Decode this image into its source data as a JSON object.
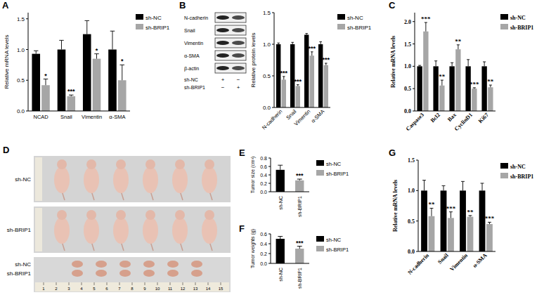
{
  "chart_data": [
    {
      "type": "bar",
      "panel": "A",
      "y_label": "Relative mRNA levels",
      "categories": [
        "NCAD",
        "Snail",
        "Vimentin",
        "α-SMA"
      ],
      "series": [
        {
          "name": "sh-NC",
          "color": "#000000",
          "values": [
            0.93,
            1.0,
            1.25,
            1.0
          ],
          "errors": [
            0.05,
            0.15,
            0.22,
            0.3
          ]
        },
        {
          "name": "sh-BRIP1",
          "color": "#a6a6a6",
          "values": [
            0.42,
            0.24,
            0.85,
            0.5
          ],
          "errors": [
            0.1,
            0.02,
            0.08,
            0.25
          ],
          "significance": [
            "*",
            "***",
            "*",
            "*"
          ]
        }
      ],
      "ylim": [
        0,
        1.6
      ],
      "yticks": [
        {
          "value": 0,
          "label": "0.0"
        },
        {
          "value": 0.5,
          "label": "0.5"
        },
        {
          "value": 1,
          "label": "1.0"
        },
        {
          "value": 1.5,
          "label": "1.5"
        }
      ],
      "grid": false,
      "legend": "right"
    },
    {
      "type": "bar",
      "panel": "B",
      "y_label": "Relative protein levels",
      "categories": [
        "N-cadherin",
        "Snail",
        "Vimentin",
        "α-SMA"
      ],
      "series": [
        {
          "name": "sh-NC",
          "color": "#000000",
          "values": [
            1.0,
            1.0,
            1.15,
            1.0
          ],
          "errors": [
            0.02,
            0.03,
            0.02,
            0.04
          ]
        },
        {
          "name": "sh-BRIP1",
          "color": "#a6a6a6",
          "values": [
            0.44,
            0.34,
            0.82,
            0.67
          ],
          "errors": [
            0.05,
            0.02,
            0.06,
            0.03
          ],
          "significance": [
            "***",
            "***",
            "***",
            "***"
          ]
        }
      ],
      "ylim": [
        0,
        1.5
      ],
      "yticks": [
        {
          "value": 0,
          "label": "0.0"
        },
        {
          "value": 0.5,
          "label": "0.5"
        },
        {
          "value": 1,
          "label": "1.0"
        },
        {
          "value": 1.5,
          "label": "1.5"
        }
      ],
      "grid": false,
      "legend": "right"
    },
    {
      "type": "bar",
      "panel": "C",
      "y_label": "Relative mRNA levels",
      "categories": [
        "Caspase3",
        "Bcl2",
        "Bax",
        "CyclinD1",
        "Ki67"
      ],
      "series": [
        {
          "name": "sh-NC",
          "color": "#000000",
          "values": [
            1,
            1,
            1,
            1,
            1
          ],
          "errors": [
            0.02,
            0.12,
            0.08,
            0.15,
            0.1
          ]
        },
        {
          "name": "sh-BRIP1",
          "color": "#a6a6a6",
          "values": [
            1.78,
            0.57,
            1.38,
            0.5,
            0.53
          ],
          "errors": [
            0.2,
            0.12,
            0.1,
            0.02,
            0.05
          ],
          "significance": [
            "***",
            "**",
            "**",
            "***",
            "**"
          ]
        }
      ],
      "ylim": [
        0,
        2.2
      ],
      "yticks": [
        {
          "value": 0,
          "label": "0.0"
        },
        {
          "value": 0.5,
          "label": "0.5"
        },
        {
          "value": 1,
          "label": "1.0"
        },
        {
          "value": 1.5,
          "label": "1.5"
        },
        {
          "value": 2,
          "label": "2.0"
        }
      ],
      "grid": false,
      "legend": "right"
    },
    {
      "type": "bar",
      "panel": "E",
      "y_label": "Tumor size (cm³)",
      "categories": [
        "sh-NC",
        "sh-BRIP1"
      ],
      "values": [
        0.52,
        0.27
      ],
      "errors": [
        0.11,
        0.03
      ],
      "significance": [
        null,
        "***"
      ],
      "colors": [
        "#000000",
        "#a6a6a6"
      ],
      "ylim": [
        0,
        0.8
      ],
      "yticks": [
        {
          "value": 0,
          "label": "0.0"
        },
        0.2,
        0.4,
        0.6,
        0.8
      ],
      "grid": false,
      "legend": "right"
    },
    {
      "type": "bar",
      "panel": "F",
      "y_label": "Tumor weights (g)",
      "categories": [
        "sh-NC",
        "sh-BRIP1"
      ],
      "values": [
        0.5,
        0.3
      ],
      "errors": [
        0.05,
        0.05
      ],
      "significance": [
        null,
        "***"
      ],
      "colors": [
        "#000000",
        "#a6a6a6"
      ],
      "ylim": [
        0,
        0.6
      ],
      "yticks": [
        {
          "value": 0,
          "label": "0.0"
        },
        0.2,
        0.4,
        0.6
      ],
      "grid": false,
      "legend": "right"
    },
    {
      "type": "bar",
      "panel": "G",
      "y_label": "Relative mRNA levels",
      "categories": [
        "N-cadherin",
        "Snail",
        "Vimentin",
        "α-SMA"
      ],
      "series": [
        {
          "name": "sh-NC",
          "color": "#000000",
          "values": [
            1,
            1,
            1,
            1
          ],
          "errors": [
            0.17,
            0.08,
            0.15,
            0.12
          ]
        },
        {
          "name": "sh-BRIP1",
          "color": "#a6a6a6",
          "values": [
            0.58,
            0.55,
            0.57,
            0.45
          ],
          "errors": [
            0.13,
            0.1,
            0.02,
            0.03
          ],
          "significance": [
            "**",
            "***",
            "**",
            "***"
          ]
        }
      ],
      "ylim": [
        0,
        1.5
      ],
      "yticks": [
        {
          "value": 0,
          "label": "0.0"
        },
        {
          "value": 0.5,
          "label": "0.5"
        },
        {
          "value": 1,
          "label": "1.0"
        },
        {
          "value": 1.5,
          "label": "1.5"
        }
      ],
      "grid": false,
      "legend": "right"
    }
  ],
  "blot": {
    "proteins": [
      "N-cadherin",
      "Snail",
      "Vimentin",
      "α-SMA",
      "β-actin"
    ],
    "lanes": [
      {
        "label": "sh-NC",
        "marks": [
          "+",
          "−"
        ]
      },
      {
        "label": "sh-BRIP1",
        "marks": [
          "−",
          "+"
        ]
      }
    ]
  },
  "photo": {
    "panel": "D",
    "mouse_rows": [
      "sh-NC",
      "sh-BRIP1"
    ],
    "tumor_rows": [
      "sh-NC",
      "sh-BRIP1"
    ],
    "ruler": [
      1,
      2,
      3,
      4,
      5,
      6,
      7,
      8,
      9,
      10,
      11,
      12,
      13,
      14,
      15
    ]
  }
}
